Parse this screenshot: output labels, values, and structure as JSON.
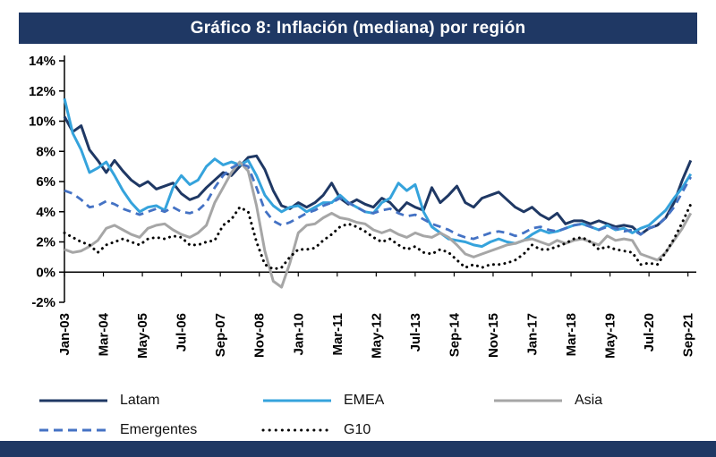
{
  "title": "Gráfico 8: Inflación (mediana) por región",
  "colors": {
    "title_bar": "#1F3864",
    "bottom_bar": "#1F3864",
    "latam": "#1F3864",
    "emea": "#35A3DC",
    "asia": "#A6A6A6",
    "emergentes": "#4472C4",
    "g10": "#000000"
  },
  "chart_data": {
    "type": "line",
    "title": "Gráfico 8: Inflación (mediana) por región",
    "xlabel": "",
    "ylabel": "",
    "ylim": [
      -2,
      14
    ],
    "grid": false,
    "legend_position": "bottom",
    "months_per_point": 3,
    "total_months": 227,
    "y_ticks": [
      {
        "label": "14%",
        "value": 14
      },
      {
        "label": "12%",
        "value": 12
      },
      {
        "label": "10%",
        "value": 10
      },
      {
        "label": "8%",
        "value": 8
      },
      {
        "label": "6%",
        "value": 6
      },
      {
        "label": "4%",
        "value": 4
      },
      {
        "label": "2%",
        "value": 2
      },
      {
        "label": "0%",
        "value": 0
      },
      {
        "label": "-2%",
        "value": -2
      }
    ],
    "x_ticks": [
      {
        "label": "Jan-03",
        "month": 0
      },
      {
        "label": "Mar-04",
        "month": 14
      },
      {
        "label": "May-05",
        "month": 28
      },
      {
        "label": "Jul-06",
        "month": 42
      },
      {
        "label": "Sep-07",
        "month": 56
      },
      {
        "label": "Nov-08",
        "month": 70
      },
      {
        "label": "Jan-10",
        "month": 84
      },
      {
        "label": "Mar-11",
        "month": 98
      },
      {
        "label": "May-12",
        "month": 112
      },
      {
        "label": "Jul-13",
        "month": 126
      },
      {
        "label": "Sep-14",
        "month": 140
      },
      {
        "label": "Nov-15",
        "month": 154
      },
      {
        "label": "Jan-17",
        "month": 168
      },
      {
        "label": "Mar-18",
        "month": 182
      },
      {
        "label": "May-19",
        "month": 196
      },
      {
        "label": "Jul-20",
        "month": 210
      },
      {
        "label": "Sep-21",
        "month": 224
      }
    ],
    "series": [
      {
        "name": "Latam",
        "color": "#1F3864",
        "style": "solid",
        "width": 3,
        "values": [
          10.3,
          9.3,
          9.7,
          8.1,
          7.4,
          6.6,
          7.4,
          6.7,
          6.1,
          5.7,
          6.0,
          5.5,
          5.7,
          5.9,
          5.2,
          4.8,
          5.0,
          5.6,
          6.1,
          6.6,
          6.4,
          7.0,
          7.6,
          7.7,
          6.8,
          5.4,
          4.4,
          4.2,
          4.6,
          4.3,
          4.6,
          5.1,
          5.9,
          4.9,
          4.5,
          4.8,
          4.5,
          4.3,
          4.9,
          4.6,
          4.0,
          4.6,
          4.3,
          4.1,
          5.6,
          4.6,
          5.1,
          5.7,
          4.6,
          4.3,
          4.9,
          5.1,
          5.3,
          4.8,
          4.3,
          4.0,
          4.3,
          3.8,
          3.5,
          3.9,
          3.2,
          3.4,
          3.4,
          3.2,
          3.4,
          3.2,
          3.0,
          3.1,
          3.0,
          2.5,
          2.9,
          3.1,
          3.6,
          4.6,
          6.1,
          7.4
        ]
      },
      {
        "name": "EMEA",
        "color": "#35A3DC",
        "style": "solid",
        "width": 3,
        "values": [
          11.5,
          9.2,
          8.1,
          6.6,
          6.9,
          7.3,
          6.4,
          5.4,
          4.6,
          4.0,
          4.3,
          4.4,
          4.1,
          5.6,
          6.4,
          5.8,
          6.1,
          7.0,
          7.5,
          7.1,
          7.3,
          7.1,
          7.4,
          6.4,
          5.1,
          4.4,
          4.0,
          4.3,
          4.4,
          4.0,
          4.3,
          4.6,
          4.6,
          5.1,
          4.6,
          4.3,
          4.0,
          3.9,
          4.6,
          4.9,
          5.9,
          5.4,
          5.8,
          4.0,
          3.0,
          2.6,
          2.2,
          2.1,
          2.0,
          1.8,
          1.7,
          2.0,
          2.2,
          2.0,
          1.9,
          2.1,
          2.5,
          2.8,
          2.6,
          2.7,
          2.9,
          3.1,
          3.2,
          3.0,
          2.8,
          3.1,
          2.8,
          2.9,
          2.6,
          2.9,
          3.1,
          3.6,
          4.1,
          4.9,
          5.6,
          6.5
        ]
      },
      {
        "name": "Asia",
        "color": "#A6A6A6",
        "style": "solid",
        "width": 3,
        "values": [
          1.5,
          1.3,
          1.4,
          1.7,
          2.1,
          2.9,
          3.1,
          2.8,
          2.5,
          2.3,
          2.9,
          3.1,
          3.2,
          2.8,
          2.5,
          2.3,
          2.6,
          3.1,
          4.6,
          5.6,
          6.6,
          7.3,
          6.7,
          4.4,
          1.4,
          -0.6,
          -1.0,
          0.6,
          2.6,
          3.1,
          3.2,
          3.6,
          3.9,
          3.6,
          3.5,
          3.3,
          3.2,
          2.8,
          2.6,
          2.8,
          2.5,
          2.3,
          2.6,
          2.4,
          2.3,
          2.6,
          2.3,
          1.8,
          1.2,
          1.0,
          1.2,
          1.4,
          1.6,
          1.8,
          1.9,
          2.1,
          2.2,
          2.0,
          1.8,
          2.1,
          1.9,
          2.1,
          2.2,
          2.0,
          1.8,
          2.4,
          2.1,
          2.2,
          2.1,
          1.2,
          1.0,
          0.8,
          1.3,
          2.1,
          2.9,
          3.9
        ]
      },
      {
        "name": "Emergentes",
        "color": "#4472C4",
        "style": "dashed",
        "width": 2.8,
        "values": [
          5.4,
          5.2,
          4.8,
          4.3,
          4.4,
          4.7,
          4.5,
          4.2,
          4.0,
          3.8,
          4.0,
          4.2,
          4.0,
          4.3,
          4.0,
          3.9,
          4.1,
          4.6,
          5.6,
          6.4,
          6.9,
          7.2,
          7.0,
          5.6,
          4.1,
          3.4,
          3.1,
          3.3,
          3.6,
          3.9,
          4.1,
          4.4,
          4.6,
          4.9,
          4.6,
          4.3,
          4.0,
          3.9,
          4.1,
          4.2,
          3.9,
          3.7,
          3.8,
          3.5,
          3.2,
          3.0,
          2.8,
          2.5,
          2.3,
          2.2,
          2.4,
          2.6,
          2.7,
          2.6,
          2.4,
          2.6,
          2.9,
          3.0,
          2.8,
          2.7,
          2.9,
          3.1,
          3.2,
          3.0,
          2.8,
          3.0,
          2.9,
          2.7,
          2.8,
          2.5,
          2.9,
          3.1,
          3.6,
          4.3,
          5.3,
          6.3
        ]
      },
      {
        "name": "G10",
        "color": "#000000",
        "style": "dotted",
        "width": 3,
        "values": [
          2.6,
          2.3,
          2.0,
          1.8,
          1.3,
          1.8,
          2.0,
          2.2,
          2.0,
          1.8,
          2.2,
          2.3,
          2.2,
          2.4,
          2.3,
          1.8,
          1.8,
          2.0,
          2.1,
          3.1,
          3.5,
          4.3,
          4.0,
          2.0,
          0.5,
          0.2,
          0.3,
          1.0,
          1.5,
          1.5,
          1.6,
          2.1,
          2.5,
          3.0,
          3.2,
          3.0,
          2.7,
          2.3,
          2.0,
          2.2,
          1.8,
          1.5,
          1.7,
          1.3,
          1.2,
          1.5,
          1.3,
          0.8,
          0.3,
          0.5,
          0.3,
          0.5,
          0.5,
          0.6,
          0.8,
          1.2,
          1.8,
          1.5,
          1.5,
          1.7,
          1.9,
          2.2,
          2.3,
          2.0,
          1.5,
          1.7,
          1.5,
          1.4,
          1.3,
          0.5,
          0.6,
          0.5,
          1.3,
          2.2,
          3.3,
          4.5
        ]
      }
    ]
  },
  "legend": {
    "items": [
      "Latam",
      "EMEA",
      "Asia",
      "Emergentes",
      "G10"
    ]
  }
}
